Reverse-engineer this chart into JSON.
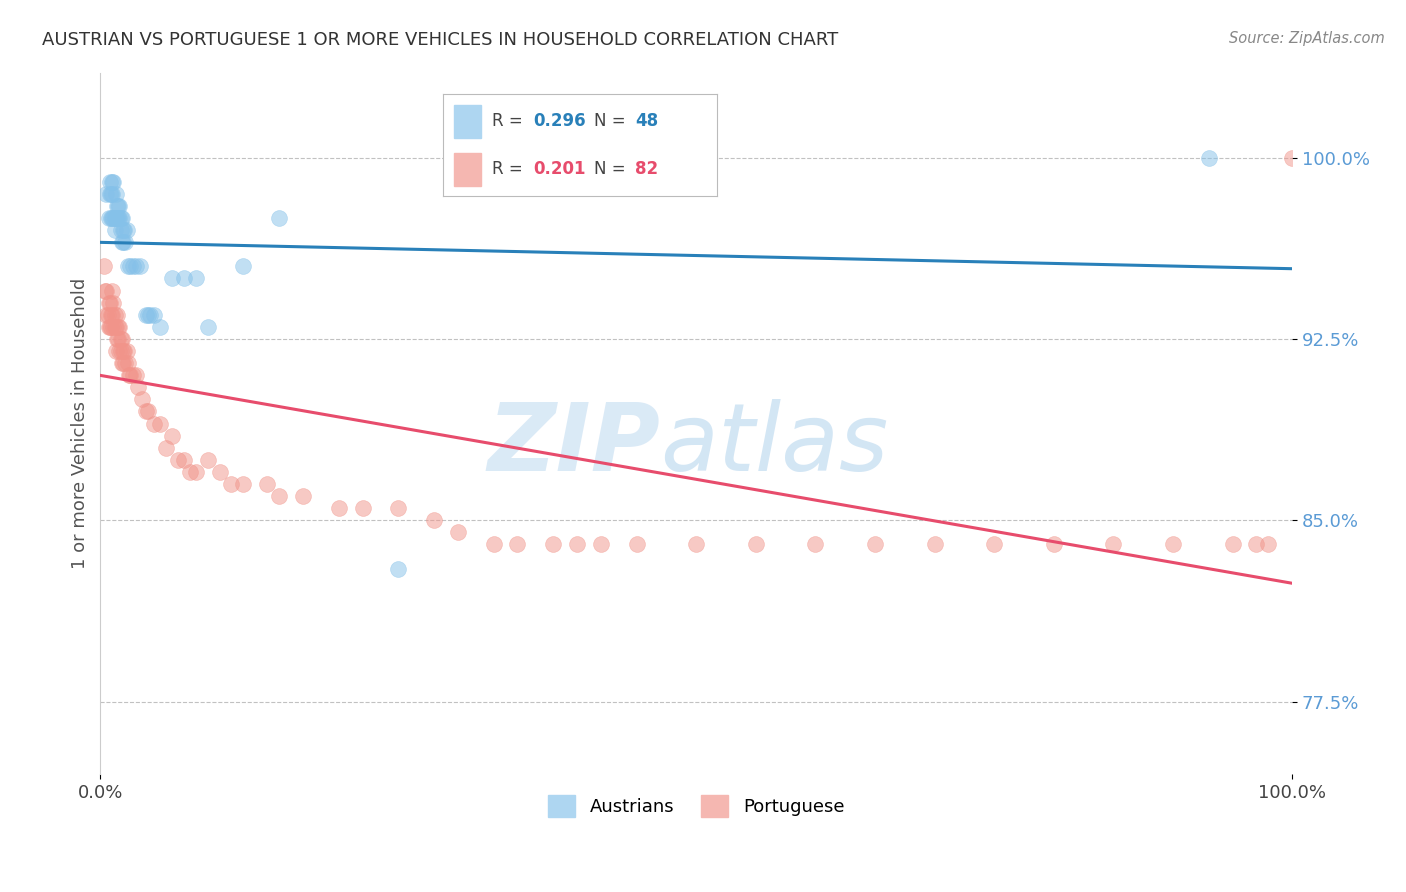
{
  "title": "AUSTRIAN VS PORTUGUESE 1 OR MORE VEHICLES IN HOUSEHOLD CORRELATION CHART",
  "source": "Source: ZipAtlas.com",
  "ylabel": "1 or more Vehicles in Household",
  "xlim": [
    0.0,
    1.0
  ],
  "ylim": [
    0.745,
    1.035
  ],
  "yticks": [
    0.775,
    0.85,
    0.925,
    1.0
  ],
  "ytick_labels": [
    "77.5%",
    "85.0%",
    "92.5%",
    "100.0%"
  ],
  "xticks": [
    0.0,
    1.0
  ],
  "xtick_labels": [
    "0.0%",
    "100.0%"
  ],
  "legend_R_austrians": "0.296",
  "legend_N_austrians": "48",
  "legend_R_portuguese": "0.201",
  "legend_N_portuguese": "82",
  "austrian_color": "#85c1e9",
  "portuguese_color": "#f1948a",
  "austrian_line_color": "#2980b9",
  "portuguese_line_color": "#e74c6c",
  "background_color": "#ffffff",
  "watermark_zip": "ZIP",
  "watermark_atlas": "atlas",
  "austrians_x": [
    0.005,
    0.007,
    0.008,
    0.008,
    0.009,
    0.009,
    0.01,
    0.01,
    0.01,
    0.011,
    0.011,
    0.012,
    0.012,
    0.013,
    0.013,
    0.014,
    0.014,
    0.015,
    0.015,
    0.016,
    0.016,
    0.017,
    0.017,
    0.018,
    0.018,
    0.019,
    0.019,
    0.02,
    0.021,
    0.022,
    0.023,
    0.025,
    0.027,
    0.03,
    0.033,
    0.038,
    0.04,
    0.042,
    0.045,
    0.05,
    0.06,
    0.07,
    0.08,
    0.09,
    0.12,
    0.15,
    0.25,
    0.93
  ],
  "austrians_y": [
    0.985,
    0.975,
    0.985,
    0.99,
    0.975,
    0.985,
    0.975,
    0.985,
    0.99,
    0.975,
    0.99,
    0.97,
    0.975,
    0.975,
    0.985,
    0.975,
    0.98,
    0.975,
    0.98,
    0.975,
    0.98,
    0.97,
    0.975,
    0.965,
    0.975,
    0.965,
    0.97,
    0.97,
    0.965,
    0.97,
    0.955,
    0.955,
    0.955,
    0.955,
    0.955,
    0.935,
    0.935,
    0.935,
    0.935,
    0.93,
    0.95,
    0.95,
    0.95,
    0.93,
    0.955,
    0.975,
    0.83,
    1.0
  ],
  "portuguese_x": [
    0.003,
    0.004,
    0.005,
    0.005,
    0.006,
    0.007,
    0.007,
    0.008,
    0.008,
    0.009,
    0.009,
    0.01,
    0.01,
    0.011,
    0.011,
    0.012,
    0.012,
    0.013,
    0.013,
    0.014,
    0.014,
    0.015,
    0.015,
    0.016,
    0.016,
    0.017,
    0.017,
    0.018,
    0.018,
    0.019,
    0.019,
    0.02,
    0.021,
    0.022,
    0.023,
    0.024,
    0.025,
    0.027,
    0.03,
    0.032,
    0.035,
    0.038,
    0.04,
    0.045,
    0.05,
    0.055,
    0.06,
    0.065,
    0.07,
    0.075,
    0.08,
    0.09,
    0.1,
    0.11,
    0.12,
    0.14,
    0.15,
    0.17,
    0.2,
    0.22,
    0.25,
    0.28,
    0.3,
    0.33,
    0.35,
    0.38,
    0.4,
    0.42,
    0.45,
    0.5,
    0.55,
    0.6,
    0.65,
    0.7,
    0.75,
    0.8,
    0.85,
    0.9,
    0.95,
    0.97,
    0.98,
    1.0
  ],
  "portuguese_y": [
    0.955,
    0.945,
    0.935,
    0.945,
    0.935,
    0.93,
    0.94,
    0.93,
    0.94,
    0.93,
    0.935,
    0.935,
    0.945,
    0.93,
    0.94,
    0.93,
    0.935,
    0.92,
    0.93,
    0.925,
    0.935,
    0.925,
    0.93,
    0.92,
    0.93,
    0.92,
    0.925,
    0.915,
    0.925,
    0.915,
    0.92,
    0.92,
    0.915,
    0.92,
    0.915,
    0.91,
    0.91,
    0.91,
    0.91,
    0.905,
    0.9,
    0.895,
    0.895,
    0.89,
    0.89,
    0.88,
    0.885,
    0.875,
    0.875,
    0.87,
    0.87,
    0.875,
    0.87,
    0.865,
    0.865,
    0.865,
    0.86,
    0.86,
    0.855,
    0.855,
    0.855,
    0.85,
    0.845,
    0.84,
    0.84,
    0.84,
    0.84,
    0.84,
    0.84,
    0.84,
    0.84,
    0.84,
    0.84,
    0.84,
    0.84,
    0.84,
    0.84,
    0.84,
    0.84,
    0.84,
    0.84,
    1.0
  ]
}
